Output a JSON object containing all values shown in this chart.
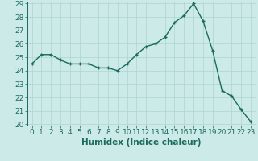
{
  "x": [
    0,
    1,
    2,
    3,
    4,
    5,
    6,
    7,
    8,
    9,
    10,
    11,
    12,
    13,
    14,
    15,
    16,
    17,
    18,
    19,
    20,
    21,
    22,
    23
  ],
  "y": [
    24.5,
    25.2,
    25.2,
    24.8,
    24.5,
    24.5,
    24.5,
    24.2,
    24.2,
    24.0,
    24.5,
    25.2,
    25.8,
    26.0,
    26.5,
    27.6,
    28.1,
    29.0,
    27.7,
    25.5,
    22.5,
    22.1,
    21.1,
    20.2
  ],
  "line_color": "#1a6b5a",
  "marker": "+",
  "marker_size": 3,
  "marker_lw": 1.0,
  "bg_color": "#cceae7",
  "grid_color": "#aed4d0",
  "xlabel": "Humidex (Indice chaleur)",
  "ylim": [
    20,
    29
  ],
  "xlim": [
    -0.5,
    23.5
  ],
  "yticks": [
    20,
    21,
    22,
    23,
    24,
    25,
    26,
    27,
    28,
    29
  ],
  "xticks": [
    0,
    1,
    2,
    3,
    4,
    5,
    6,
    7,
    8,
    9,
    10,
    11,
    12,
    13,
    14,
    15,
    16,
    17,
    18,
    19,
    20,
    21,
    22,
    23
  ],
  "tick_color": "#1a6b5a",
  "label_fontsize": 6.5,
  "xlabel_fontsize": 7.5,
  "line_width": 1.0
}
